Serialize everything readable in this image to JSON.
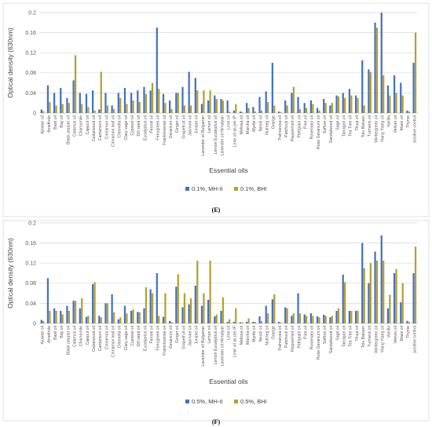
{
  "colors": {
    "series1": "#4472C4",
    "series2": "#B5A02E",
    "grid": "#D9D9D9",
    "axis": "#BFBFBF"
  },
  "chart_data": [
    {
      "type": "bar",
      "panel": "(E)",
      "xlabel": "Essential oils",
      "ylabel": "Optical density (630nm)",
      "ylim": [
        0,
        0.2
      ],
      "yticks": [
        "0",
        "0.04",
        "0.08",
        "0.12",
        "0.16",
        "0.2"
      ],
      "grid": true,
      "legend": "bottom",
      "categories": [
        "Ajowan oil",
        "Amethole",
        "Basil oil",
        "Bay oil",
        "Black pepper oil",
        "Calamus oil",
        "Chamomile",
        "Cajeput oil",
        "Cedarwood oil",
        "Cardamom oil",
        "Cinnamon oil",
        "Cinnamon leaf oil",
        "Citronella oil",
        "Clary sage oil",
        "Cypress oil",
        "Dill seed oil",
        "Eucalyptus oil",
        "Fennel oil",
        "Fenugreek oil",
        "Frankincense oil",
        "Geranium oil",
        "Ginger oil",
        "Grapefruit oil",
        "Jasmine oil",
        "Juniper oil",
        "Lavender oil Bulgarian",
        "Lemon oil",
        "Lemon Eucalyptus oil",
        "Lavender oil Himalyan",
        "Lime oil",
        "Lime oil as per IP",
        "Melissa oil",
        "Marcha oil",
        "Myrtle oil",
        "Neroli oil",
        "Nutmeg oil",
        "Orange",
        "Palmarosa oil",
        "Patchouli oil",
        "Peppermint oil",
        "Pettigrain oil",
        "Pine oil",
        "Rosemary oil",
        "Rose Geranium oil",
        "Saffron oil",
        "Sandalwood oil",
        "Sage oil",
        "Tarragon oil",
        "Tea Tree oil",
        "Thuja oil",
        "Tolu Balsam",
        "Turmeric oil",
        "Wintergreen oil",
        "Ylang Ylang oil",
        "Vanilla",
        "Vetiver oil",
        "Mace oil",
        "Thyme",
        "positive control"
      ],
      "series": [
        {
          "name": "0.1%, MH-II",
          "values": [
            0.007,
            0.055,
            0.04,
            0.05,
            0.03,
            0.065,
            0.04,
            0.038,
            0.045,
            0.007,
            0.04,
            0.015,
            0.04,
            0.05,
            0.04,
            0.045,
            0.052,
            0.045,
            0.17,
            0.038,
            0.025,
            0.04,
            0.052,
            0.082,
            0.07,
            0.018,
            0.025,
            0.035,
            0.028,
            0.025,
            0.005,
            0.003,
            0.02,
            0.012,
            0.032,
            0.043,
            0.1,
            0.003,
            0.025,
            0.04,
            0.032,
            0.02,
            0.025,
            0.01,
            0.028,
            0.015,
            0.035,
            0.04,
            0.048,
            0.035,
            0.105,
            0.087,
            0.18,
            0.2,
            0.055,
            0.075,
            0.06,
            0.005,
            0.1
          ]
        },
        {
          "name": "0.1%, BHI",
          "values": [
            0.004,
            0.022,
            0.015,
            0.018,
            0.02,
            0.115,
            0.018,
            0.012,
            0.005,
            0.082,
            0.015,
            0.008,
            0.03,
            0.018,
            0.025,
            0.022,
            0.038,
            0.06,
            0.048,
            0.02,
            0.008,
            0.04,
            0.015,
            0.015,
            0.045,
            0.045,
            0.045,
            0.028,
            0.025,
            0.003,
            0.018,
            0.002,
            0.01,
            0.003,
            0.005,
            0.022,
            0.015,
            0.002,
            0.015,
            0.052,
            0.008,
            0.01,
            0.018,
            0.005,
            0.02,
            0.02,
            0.033,
            0.03,
            0.035,
            0.03,
            0.015,
            0.082,
            0.17,
            0.075,
            0.035,
            0.04,
            0.035,
            0.003,
            0.16
          ]
        }
      ],
      "legend_entries": [
        "0.1%, MH-II",
        "0.1%, BHI"
      ]
    },
    {
      "type": "bar",
      "panel": "(F)",
      "xlabel": "Essential oils",
      "ylabel": "Optical density (630nm)",
      "ylim": [
        0,
        0.2
      ],
      "yticks": [
        "0",
        "0.04",
        "0.08",
        "0.12",
        "0.16",
        "0.2"
      ],
      "grid": true,
      "legend": "bottom",
      "categories": [
        "Ajowan oil",
        "Amethole",
        "Basil oil",
        "Bay oil",
        "Black pepper oil",
        "Calamus oil",
        "Chamomile",
        "Cajeput oil",
        "Cedarwood oil",
        "Cardamom oil",
        "Cinnamon oil",
        "Cinnamon leaf oil",
        "Citronella oil",
        "Clary sage oil",
        "Cypress oil",
        "Dill seed oil",
        "Eucalyptus oil",
        "Fennel oil",
        "Fenugreek oil",
        "Frankincense oil",
        "Geranium oil",
        "Ginger oil",
        "Grapefruit oil",
        "Jasmine oil",
        "Juniper oil",
        "Lavender oil Bulgarian",
        "Lemon oil",
        "Lemon Eucalyptus oil",
        "Lavender oil Himalyan",
        "Lime oil",
        "Lime oil as per IP",
        "Melissa oil",
        "Marcha oil",
        "Myrtle oil",
        "Neroli oil",
        "Nutmeg oil",
        "Orange",
        "Palmarosa oil",
        "Patchouli oil",
        "Peppermint oil",
        "Pettigrain oil",
        "Pine oil",
        "Rosemary oil",
        "Rose Geranium oil",
        "Saffron oil",
        "Sandalwood oil",
        "Sage oil",
        "Tarragon oil",
        "Tea Tree oil",
        "Thuja oil",
        "Tolu Balsam",
        "Turmeric oil",
        "Wintergreen oil",
        "Ylang Ylang oil",
        "Vanilla",
        "Vetiver oil",
        "Mace oil",
        "Thyme",
        "positive control"
      ],
      "series": [
        {
          "name": "0.5%, MH-II",
          "values": [
            0.007,
            0.09,
            0.03,
            0.025,
            0.035,
            0.045,
            0.03,
            0.013,
            0.078,
            0.015,
            0.04,
            0.058,
            0.008,
            0.035,
            0.025,
            0.023,
            0.03,
            0.068,
            0.1,
            0.013,
            0.005,
            0.073,
            0.032,
            0.038,
            0.075,
            0.035,
            0.047,
            0.014,
            0.025,
            0.003,
            0.003,
            0.002,
            0.003,
            0.003,
            0.014,
            0.035,
            0.048,
            0.003,
            0.032,
            0.015,
            0.06,
            0.018,
            0.02,
            0.014,
            0.017,
            0.012,
            0.025,
            0.097,
            0.025,
            0.025,
            0.16,
            0.08,
            0.143,
            0.175,
            0.03,
            0.1,
            0.042,
            0.005,
            0.1
          ]
        },
        {
          "name": "0.5%, BHI",
          "values": [
            0.005,
            0.025,
            0.025,
            0.018,
            0.025,
            0.045,
            0.05,
            0.015,
            0.082,
            0.012,
            0.04,
            0.022,
            0.012,
            0.02,
            0.028,
            0.022,
            0.072,
            0.06,
            0.015,
            0.06,
            0.003,
            0.098,
            0.06,
            0.05,
            0.125,
            0.06,
            0.125,
            0.018,
            0.052,
            0.008,
            0.03,
            0.002,
            0.01,
            0.003,
            0.005,
            0.02,
            0.058,
            0.002,
            0.03,
            0.02,
            0.02,
            0.015,
            0.015,
            0.012,
            0.015,
            0.015,
            0.03,
            0.082,
            0.025,
            0.025,
            0.11,
            0.12,
            0.125,
            0.125,
            0.057,
            0.108,
            0.08,
            0.003,
            0.153
          ]
        }
      ],
      "legend_entries": [
        "0.5%, MH-II",
        "0.5%, BHI"
      ]
    }
  ]
}
